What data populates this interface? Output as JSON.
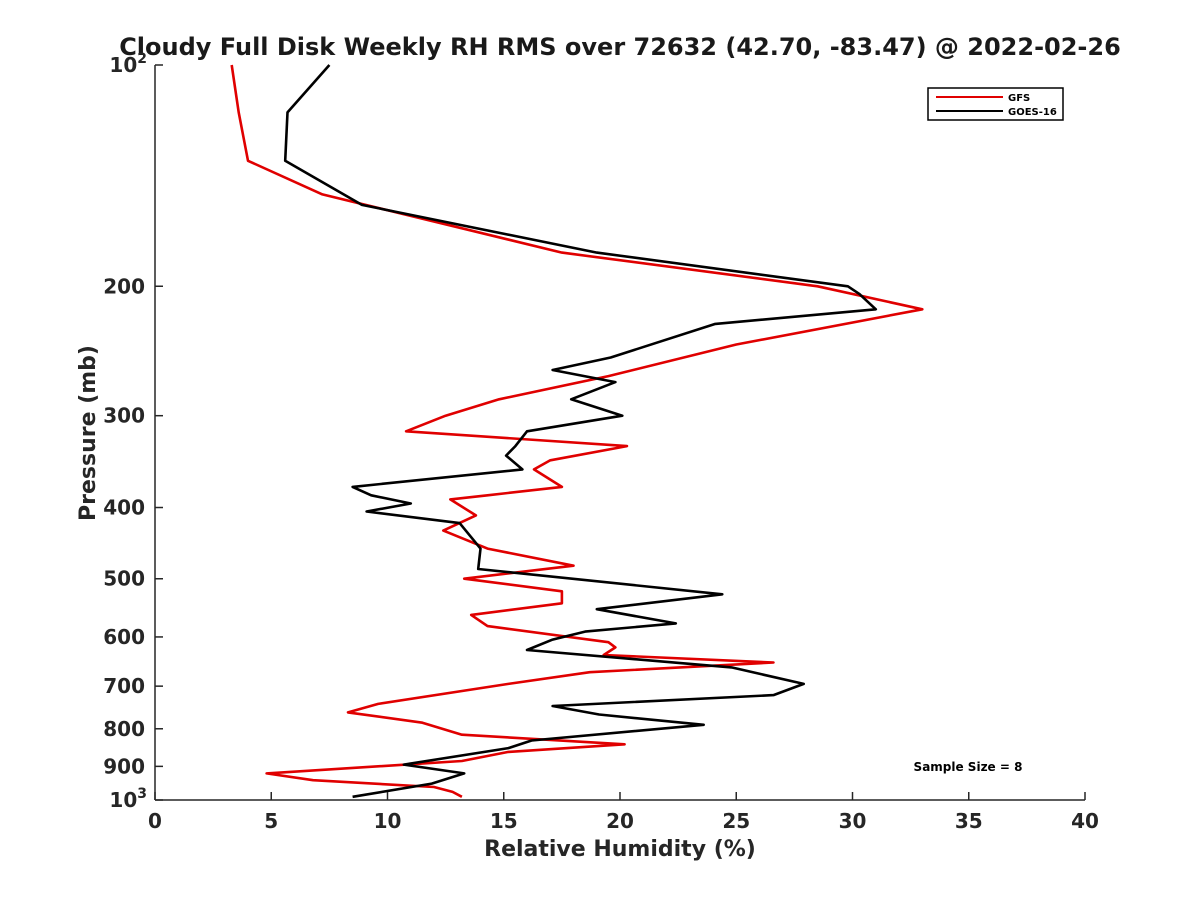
{
  "chart_data": {
    "type": "line",
    "title": "Cloudy Full Disk Weekly RH RMS over 72632 (42.70, -83.47) @ 2022-02-26",
    "xlabel": "Relative Humidity (%)",
    "ylabel": "Pressure (mb)",
    "xlim": [
      0,
      40
    ],
    "ylim": [
      100,
      1000
    ],
    "y_scale": "log",
    "y_reversed": true,
    "grid": false,
    "legend_position": "top-right",
    "x_ticks": [
      "0",
      "5",
      "10",
      "15",
      "20",
      "25",
      "30",
      "35",
      "40"
    ],
    "y_ticks": [
      {
        "value": 100,
        "base": "10",
        "exp": "2"
      },
      {
        "value": 200,
        "label": "200"
      },
      {
        "value": 300,
        "label": "300"
      },
      {
        "value": 400,
        "label": "400"
      },
      {
        "value": 500,
        "label": "500"
      },
      {
        "value": 600,
        "label": "600"
      },
      {
        "value": 700,
        "label": "700"
      },
      {
        "value": 800,
        "label": "800"
      },
      {
        "value": 900,
        "label": "900"
      },
      {
        "value": 1000,
        "base": "10",
        "exp": "3"
      }
    ],
    "annotation": "Sample Size = 8",
    "series": [
      {
        "name": "GFS",
        "color": "#e00000",
        "points": [
          [
            3.3,
            100
          ],
          [
            3.6,
            116
          ],
          [
            4.0,
            135
          ],
          [
            7.2,
            150
          ],
          [
            17.5,
            180
          ],
          [
            28.5,
            200
          ],
          [
            33.0,
            215
          ],
          [
            25.0,
            240
          ],
          [
            19.5,
            265
          ],
          [
            14.8,
            285
          ],
          [
            12.5,
            300
          ],
          [
            10.8,
            315
          ],
          [
            20.3,
            330
          ],
          [
            17.0,
            345
          ],
          [
            16.3,
            355
          ],
          [
            17.5,
            375
          ],
          [
            14.3,
            385
          ],
          [
            12.7,
            390
          ],
          [
            13.8,
            410
          ],
          [
            12.4,
            430
          ],
          [
            14.3,
            455
          ],
          [
            18.0,
            480
          ],
          [
            13.3,
            500
          ],
          [
            17.5,
            520
          ],
          [
            17.5,
            540
          ],
          [
            13.6,
            560
          ],
          [
            14.3,
            580
          ],
          [
            19.5,
            610
          ],
          [
            19.8,
            620
          ],
          [
            19.3,
            635
          ],
          [
            26.6,
            650
          ],
          [
            18.7,
            670
          ],
          [
            15.2,
            695
          ],
          [
            9.6,
            740
          ],
          [
            8.3,
            760
          ],
          [
            11.5,
            785
          ],
          [
            13.2,
            815
          ],
          [
            20.2,
            840
          ],
          [
            15.2,
            860
          ],
          [
            13.2,
            885
          ],
          [
            4.8,
            920
          ],
          [
            6.8,
            940
          ],
          [
            12.0,
            960
          ],
          [
            12.8,
            975
          ],
          [
            13.2,
            990
          ]
        ]
      },
      {
        "name": "GOES-16",
        "color": "#000000",
        "points": [
          [
            7.5,
            100
          ],
          [
            5.7,
            116
          ],
          [
            5.6,
            135
          ],
          [
            8.9,
            155
          ],
          [
            19.0,
            180
          ],
          [
            29.8,
            200
          ],
          [
            30.3,
            205
          ],
          [
            31.0,
            215
          ],
          [
            24.1,
            225
          ],
          [
            19.6,
            250
          ],
          [
            17.1,
            260
          ],
          [
            19.8,
            270
          ],
          [
            17.9,
            285
          ],
          [
            20.1,
            300
          ],
          [
            16.0,
            315
          ],
          [
            15.5,
            330
          ],
          [
            15.1,
            340
          ],
          [
            15.8,
            355
          ],
          [
            8.5,
            375
          ],
          [
            9.3,
            385
          ],
          [
            11.0,
            395
          ],
          [
            9.1,
            405
          ],
          [
            13.1,
            420
          ],
          [
            14.0,
            455
          ],
          [
            13.9,
            485
          ],
          [
            24.4,
            525
          ],
          [
            19.0,
            550
          ],
          [
            22.4,
            575
          ],
          [
            18.5,
            590
          ],
          [
            17.1,
            605
          ],
          [
            16.0,
            625
          ],
          [
            24.8,
            660
          ],
          [
            27.9,
            695
          ],
          [
            26.6,
            720
          ],
          [
            17.1,
            745
          ],
          [
            19.1,
            765
          ],
          [
            23.6,
            790
          ],
          [
            16.2,
            830
          ],
          [
            15.2,
            850
          ],
          [
            10.7,
            895
          ],
          [
            13.3,
            920
          ],
          [
            11.9,
            950
          ],
          [
            8.5,
            990
          ]
        ]
      }
    ]
  }
}
